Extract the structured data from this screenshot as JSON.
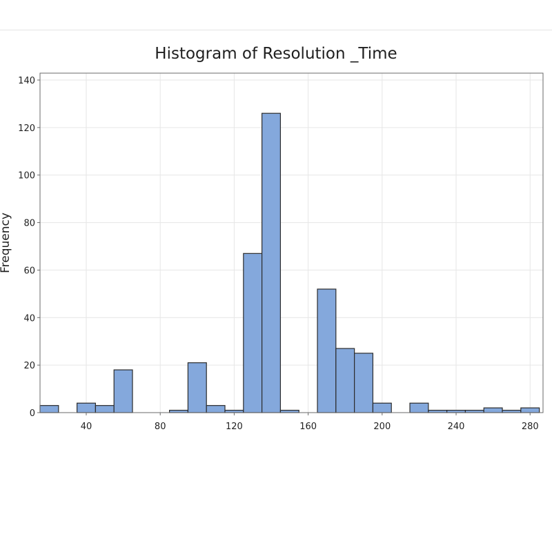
{
  "chart_data": {
    "type": "bar",
    "title": "Histogram of Resolution _Time",
    "xlabel": "",
    "ylabel": "Frequency",
    "xlim": [
      15,
      287
    ],
    "ylim": [
      0,
      140
    ],
    "bin_width": 10,
    "x_ticks": [
      40,
      80,
      120,
      160,
      200,
      240,
      280
    ],
    "y_ticks": [
      0,
      20,
      40,
      60,
      80,
      100,
      120,
      140
    ],
    "grid": true,
    "bar_color": "#84a8dc",
    "bin_centers": [
      20,
      30,
      40,
      50,
      60,
      70,
      80,
      90,
      100,
      110,
      120,
      130,
      140,
      150,
      160,
      170,
      180,
      190,
      200,
      210,
      220,
      230,
      240,
      250,
      260,
      270,
      280
    ],
    "values": [
      3,
      0,
      4,
      3,
      18,
      0,
      0,
      1,
      21,
      3,
      1,
      67,
      126,
      1,
      0,
      52,
      27,
      25,
      4,
      0,
      4,
      1,
      1,
      1,
      2,
      1,
      2
    ]
  }
}
